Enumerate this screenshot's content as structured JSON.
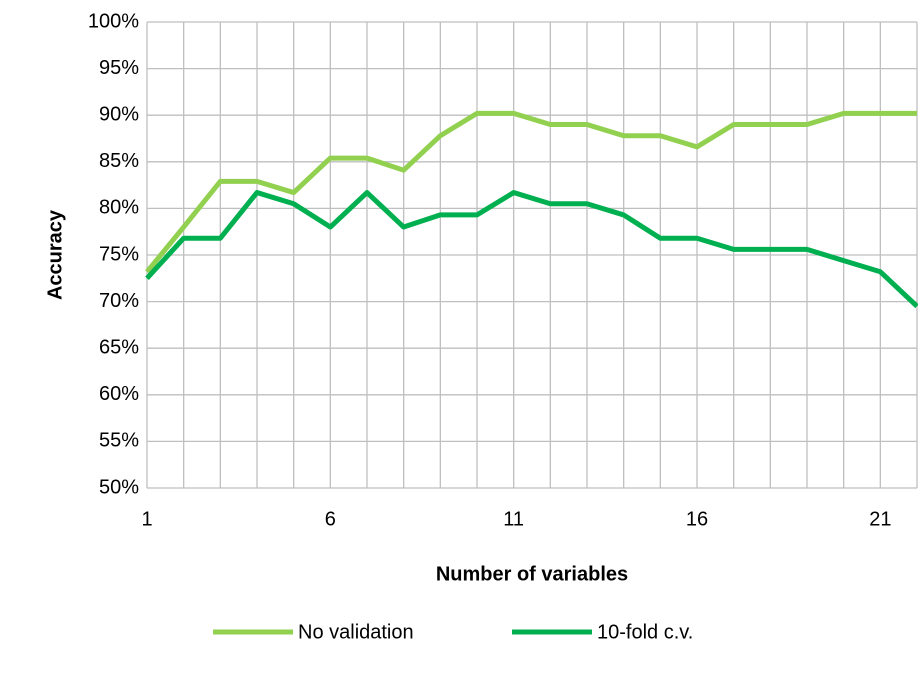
{
  "chart_data": {
    "type": "line",
    "x_label": "Number of variables",
    "y_label": "Accuracy",
    "x": [
      1,
      2,
      3,
      4,
      5,
      6,
      7,
      8,
      9,
      10,
      11,
      12,
      13,
      14,
      15,
      16,
      17,
      18,
      19,
      20,
      21,
      22
    ],
    "series": [
      {
        "name": "No validation",
        "color": "#92d050",
        "values": [
          73.2,
          78,
          82.9,
          82.9,
          81.7,
          85.4,
          85.4,
          84.1,
          87.8,
          90.2,
          90.2,
          89,
          89,
          87.8,
          87.8,
          86.6,
          89,
          89,
          89,
          90.2,
          90.2,
          90.2
        ]
      },
      {
        "name": "10-fold c.v.",
        "color": "#00b050",
        "values": [
          72.5,
          76.8,
          76.8,
          81.7,
          80.5,
          78,
          81.7,
          78,
          79.3,
          79.3,
          81.7,
          80.5,
          80.5,
          79.3,
          76.8,
          76.8,
          75.6,
          75.6,
          75.6,
          74.4,
          73.2,
          69.5
        ]
      }
    ],
    "xlim": [
      1,
      22
    ],
    "xticks": [
      1,
      6,
      11,
      16,
      21
    ],
    "ylim": [
      50,
      100
    ],
    "yticks": [
      {
        "value": 50,
        "label": "50%"
      },
      {
        "value": 55,
        "label": "55%"
      },
      {
        "value": 60,
        "label": "60%"
      },
      {
        "value": 65,
        "label": "65%"
      },
      {
        "value": 70,
        "label": "70%"
      },
      {
        "value": 75,
        "label": "75%"
      },
      {
        "value": 80,
        "label": "80%"
      },
      {
        "value": 85,
        "label": "85%"
      },
      {
        "value": 90,
        "label": "90%"
      },
      {
        "value": 95,
        "label": "95%"
      },
      {
        "value": 100,
        "label": "100%"
      }
    ],
    "grid": true,
    "legend": "bottom"
  }
}
